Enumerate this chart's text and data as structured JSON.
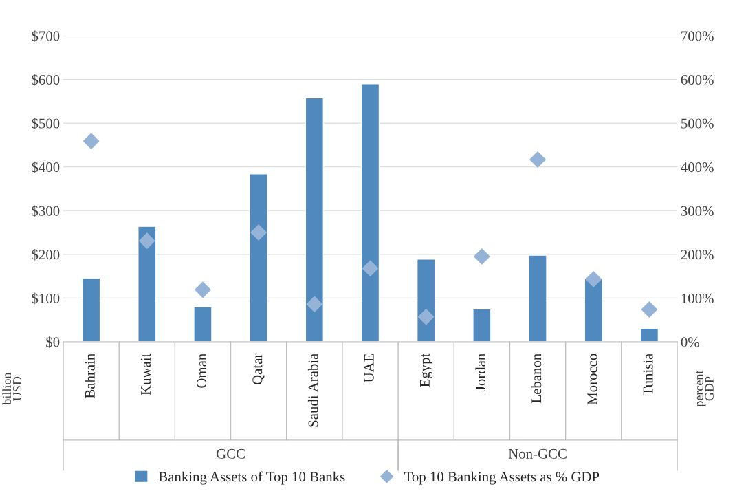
{
  "chart_data": {
    "type": "bar",
    "categories": [
      "Bahrain",
      "Kuwait",
      "Oman",
      "Qatar",
      "Saudi Arabia",
      "UAE",
      "Egypt",
      "Jordan",
      "Lebanon",
      "Morocco",
      "Tunisia"
    ],
    "series": [
      {
        "name": "Banking Assets of Top 10 Banks",
        "color": "#4f89bd",
        "values": [
          146,
          264,
          80,
          384,
          558,
          590,
          189,
          75,
          198,
          145,
          31
        ]
      },
      {
        "name": "Top 10 Banking Assets as % GDP",
        "type": "scatter",
        "axis": "y2",
        "marker": "diamond",
        "color": "#95b3d7",
        "values": [
          459,
          231,
          119,
          250,
          86,
          168,
          57,
          195,
          417,
          143,
          74
        ]
      }
    ],
    "ylabel": "billion\nUSD",
    "y2label": "percent\nGDP",
    "ylim": [
      0,
      700
    ],
    "yticks": [
      {
        "value": 0,
        "label": "$0"
      },
      {
        "value": 100,
        "label": "$100"
      },
      {
        "value": 200,
        "label": "$200"
      },
      {
        "value": 300,
        "label": "$300"
      },
      {
        "value": 400,
        "label": "$400"
      },
      {
        "value": 500,
        "label": "$500"
      },
      {
        "value": 600,
        "label": "$600"
      },
      {
        "value": 700,
        "label": "$700"
      }
    ],
    "y2lim": [
      0,
      700
    ],
    "y2ticks": [
      {
        "value": 0,
        "label": "0%"
      },
      {
        "value": 100,
        "label": "100%"
      },
      {
        "value": 200,
        "label": "200%"
      },
      {
        "value": 300,
        "label": "300%"
      },
      {
        "value": 400,
        "label": "400%"
      },
      {
        "value": 500,
        "label": "500%"
      },
      {
        "value": 600,
        "label": "600%"
      },
      {
        "value": 700,
        "label": "700%"
      }
    ],
    "annotations": [
      "GCC",
      "Non-GCC"
    ],
    "grid": "y",
    "legend": "bottom"
  }
}
